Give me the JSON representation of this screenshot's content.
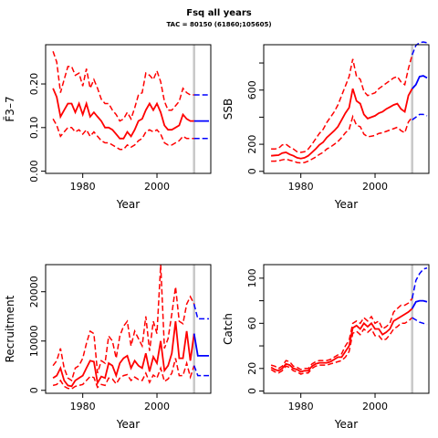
{
  "figure": {
    "title": "Fsq all years",
    "subtitle": "TAC = 80150 (61860;105605)"
  },
  "colors": {
    "history": "#ff0000",
    "projection": "#0000ff",
    "current_year_marker": "#c8c8c8",
    "axis": "#000000"
  },
  "chart_data": [
    {
      "id": "fbar",
      "type": "line",
      "xlabel": "Year",
      "ylabel": "F̄3–7",
      "xlim": [
        1970,
        2014.5
      ],
      "ylim": [
        -0.005,
        0.29
      ],
      "xticks": [
        1980,
        2000
      ],
      "yticks": [
        0.0,
        0.1,
        0.2
      ],
      "ytick_labels": [
        "0.00",
        "0.10",
        "0.20"
      ],
      "vline": 2010,
      "history": {
        "years": [
          1972,
          1973,
          1974,
          1975,
          1976,
          1977,
          1978,
          1979,
          1980,
          1981,
          1982,
          1983,
          1984,
          1985,
          1986,
          1987,
          1988,
          1989,
          1990,
          1991,
          1992,
          1993,
          1994,
          1995,
          1996,
          1997,
          1998,
          1999,
          2000,
          2001,
          2002,
          2003,
          2004,
          2005,
          2006,
          2007,
          2008,
          2009,
          2010
        ],
        "mid": [
          0.19,
          0.17,
          0.125,
          0.14,
          0.155,
          0.155,
          0.135,
          0.155,
          0.13,
          0.155,
          0.125,
          0.135,
          0.125,
          0.115,
          0.1,
          0.1,
          0.095,
          0.085,
          0.075,
          0.075,
          0.09,
          0.08,
          0.095,
          0.115,
          0.12,
          0.14,
          0.155,
          0.14,
          0.155,
          0.135,
          0.105,
          0.095,
          0.095,
          0.1,
          0.105,
          0.13,
          0.12,
          0.115,
          0.115
        ],
        "upper": [
          0.275,
          0.25,
          0.18,
          0.21,
          0.24,
          0.24,
          0.22,
          0.225,
          0.195,
          0.235,
          0.19,
          0.21,
          0.19,
          0.165,
          0.155,
          0.155,
          0.14,
          0.13,
          0.115,
          0.12,
          0.135,
          0.12,
          0.145,
          0.175,
          0.18,
          0.225,
          0.22,
          0.21,
          0.23,
          0.205,
          0.16,
          0.14,
          0.14,
          0.15,
          0.16,
          0.19,
          0.18,
          0.175,
          0.175
        ],
        "lower": [
          0.12,
          0.105,
          0.08,
          0.09,
          0.1,
          0.1,
          0.09,
          0.095,
          0.085,
          0.095,
          0.08,
          0.09,
          0.08,
          0.07,
          0.065,
          0.065,
          0.06,
          0.055,
          0.05,
          0.05,
          0.06,
          0.055,
          0.06,
          0.07,
          0.075,
          0.09,
          0.095,
          0.09,
          0.095,
          0.085,
          0.065,
          0.06,
          0.06,
          0.065,
          0.07,
          0.08,
          0.075,
          0.075,
          0.075
        ]
      },
      "projection": {
        "years": [
          2010,
          2011,
          2012,
          2013,
          2014
        ],
        "mid": [
          0.115,
          0.115,
          0.115,
          0.115,
          0.115
        ],
        "upper": [
          0.175,
          0.175,
          0.175,
          0.175,
          0.175
        ],
        "lower": [
          0.075,
          0.075,
          0.075,
          0.075,
          0.075
        ]
      }
    },
    {
      "id": "ssb",
      "type": "line",
      "xlabel": "Year",
      "ylabel": "SSB",
      "xlim": [
        1970,
        2014.5
      ],
      "ylim": [
        -15,
        935
      ],
      "xticks": [
        1980,
        2000
      ],
      "yticks": [
        0,
        200,
        400,
        600,
        800
      ],
      "ytick_labels": [
        "0",
        "200",
        "",
        "600",
        ""
      ],
      "vline": 2010,
      "history": {
        "years": [
          1972,
          1973,
          1974,
          1975,
          1976,
          1977,
          1978,
          1979,
          1980,
          1981,
          1982,
          1983,
          1984,
          1985,
          1986,
          1987,
          1988,
          1989,
          1990,
          1991,
          1992,
          1993,
          1994,
          1995,
          1996,
          1997,
          1998,
          1999,
          2000,
          2001,
          2002,
          2003,
          2004,
          2005,
          2006,
          2007,
          2008,
          2009,
          2010
        ],
        "mid": [
          115,
          118,
          120,
          135,
          140,
          125,
          115,
          100,
          95,
          100,
          115,
          140,
          165,
          195,
          215,
          250,
          275,
          300,
          330,
          380,
          430,
          470,
          610,
          520,
          500,
          420,
          390,
          400,
          410,
          430,
          440,
          460,
          475,
          490,
          500,
          460,
          440,
          560,
          610
        ],
        "upper": [
          165,
          165,
          170,
          195,
          200,
          180,
          165,
          145,
          140,
          145,
          165,
          200,
          240,
          280,
          310,
          360,
          400,
          440,
          490,
          560,
          630,
          700,
          830,
          700,
          680,
          590,
          560,
          570,
          580,
          610,
          630,
          650,
          670,
          690,
          700,
          660,
          640,
          760,
          860
        ],
        "lower": [
          75,
          75,
          78,
          85,
          90,
          82,
          75,
          65,
          62,
          65,
          75,
          90,
          105,
          125,
          140,
          165,
          180,
          200,
          220,
          250,
          285,
          310,
          405,
          340,
          330,
          275,
          255,
          260,
          265,
          280,
          285,
          295,
          305,
          315,
          325,
          300,
          285,
          365,
          400
        ]
      },
      "projection": {
        "years": [
          2010,
          2011,
          2012,
          2013,
          2014
        ],
        "mid": [
          610,
          640,
          700,
          705,
          690
        ],
        "upper": [
          860,
          930,
          950,
          955,
          950
        ],
        "lower": [
          380,
          400,
          420,
          420,
          410
        ]
      }
    },
    {
      "id": "recruitment",
      "type": "line",
      "xlabel": "Year",
      "ylabel": "Recruitment",
      "xlim": [
        1970,
        2014.5
      ],
      "ylim": [
        -600,
        25500
      ],
      "xticks": [
        1980,
        2000
      ],
      "yticks": [
        0,
        10000,
        20000
      ],
      "ytick_labels": [
        "0",
        "10000",
        "20000"
      ],
      "vline": 2010,
      "history": {
        "years": [
          1972,
          1973,
          1974,
          1975,
          1976,
          1977,
          1978,
          1979,
          1980,
          1981,
          1982,
          1983,
          1984,
          1985,
          1986,
          1987,
          1988,
          1989,
          1990,
          1991,
          1992,
          1993,
          1994,
          1995,
          1996,
          1997,
          1998,
          1999,
          2000,
          2001,
          2002,
          2003,
          2004,
          2005,
          2006,
          2007,
          2008,
          2009,
          2010
        ],
        "mid": [
          2500,
          3000,
          4500,
          2000,
          1000,
          800,
          2000,
          2500,
          3000,
          4500,
          6000,
          5800,
          1500,
          2800,
          2500,
          5500,
          5000,
          3000,
          5500,
          6500,
          7000,
          4500,
          6000,
          5000,
          4500,
          7500,
          3800,
          6800,
          5500,
          10000,
          4000,
          5000,
          7500,
          14000,
          6500,
          6500,
          12000,
          6000,
          11500
        ],
        "upper": [
          5000,
          6000,
          8500,
          4500,
          2500,
          2000,
          4500,
          5000,
          6500,
          9500,
          12000,
          11500,
          3500,
          6000,
          5500,
          11000,
          10000,
          6500,
          11000,
          13000,
          14000,
          9000,
          12000,
          10500,
          9000,
          15000,
          8000,
          14000,
          11500,
          25500,
          8500,
          10500,
          15500,
          21000,
          14000,
          13500,
          17500,
          19000,
          17500
        ],
        "lower": [
          1000,
          1200,
          2000,
          800,
          400,
          300,
          800,
          1000,
          1200,
          2000,
          2800,
          2600,
          600,
          1200,
          1000,
          2500,
          2300,
          1300,
          2500,
          3000,
          3200,
          2000,
          2700,
          2200,
          2000,
          3500,
          1600,
          3100,
          2500,
          4500,
          1800,
          2300,
          3500,
          6500,
          3000,
          3000,
          5500,
          2700,
          5000
        ]
      },
      "projection": {
        "years": [
          2010,
          2011,
          2012,
          2013,
          2014
        ],
        "mid": [
          11500,
          7000,
          7000,
          7000,
          7000
        ],
        "upper": [
          17500,
          14500,
          14500,
          14500,
          14500
        ],
        "lower": [
          5000,
          3000,
          3000,
          3000,
          3000
        ]
      }
    },
    {
      "id": "catch",
      "type": "line",
      "xlabel": "Year",
      "ylabel": "Catch",
      "xlim": [
        1970,
        2014.5
      ],
      "ylim": [
        -2,
        112
      ],
      "xticks": [
        1980,
        2000
      ],
      "yticks": [
        0,
        20,
        40,
        60,
        80,
        100
      ],
      "ytick_labels": [
        "0",
        "20",
        "",
        "60",
        "",
        "100"
      ],
      "vline": 2010,
      "history": {
        "years": [
          1972,
          1973,
          1974,
          1975,
          1976,
          1977,
          1978,
          1979,
          1980,
          1981,
          1982,
          1983,
          1984,
          1985,
          1986,
          1987,
          1988,
          1989,
          1990,
          1991,
          1992,
          1993,
          1994,
          1995,
          1996,
          1997,
          1998,
          1999,
          2000,
          2001,
          2002,
          2003,
          2004,
          2005,
          2006,
          2007,
          2008,
          2009,
          2010
        ],
        "mid": [
          21,
          19,
          18,
          20,
          24,
          23,
          20,
          19,
          17,
          18,
          18,
          22,
          24,
          25,
          25,
          25,
          26,
          28,
          30,
          30,
          35,
          40,
          56,
          58,
          55,
          60,
          57,
          60,
          55,
          55,
          50,
          52,
          55,
          62,
          64,
          66,
          68,
          70,
          73
        ],
        "upper": [
          23,
          22,
          20,
          22,
          27,
          26,
          22,
          21,
          19,
          20,
          20,
          24,
          26,
          27,
          27,
          27,
          28,
          30,
          32,
          33,
          40,
          45,
          60,
          62,
          60,
          65,
          62,
          66,
          60,
          62,
          55,
          57,
          60,
          70,
          73,
          76,
          76,
          78,
          82
        ],
        "lower": [
          19,
          17,
          16,
          18,
          22,
          21,
          18,
          17,
          15,
          16,
          16,
          20,
          22,
          23,
          23,
          23,
          24,
          25,
          26,
          27,
          30,
          35,
          51,
          53,
          50,
          55,
          52,
          55,
          49,
          49,
          45,
          46,
          50,
          55,
          57,
          60,
          60,
          62,
          65
        ]
      },
      "projection": {
        "years": [
          2010,
          2011,
          2012,
          2013,
          2014
        ],
        "mid": [
          73,
          79,
          80,
          80,
          79
        ],
        "upper": [
          82,
          98,
          104,
          108,
          109
        ],
        "lower": [
          65,
          63,
          61,
          60,
          59
        ]
      }
    }
  ]
}
